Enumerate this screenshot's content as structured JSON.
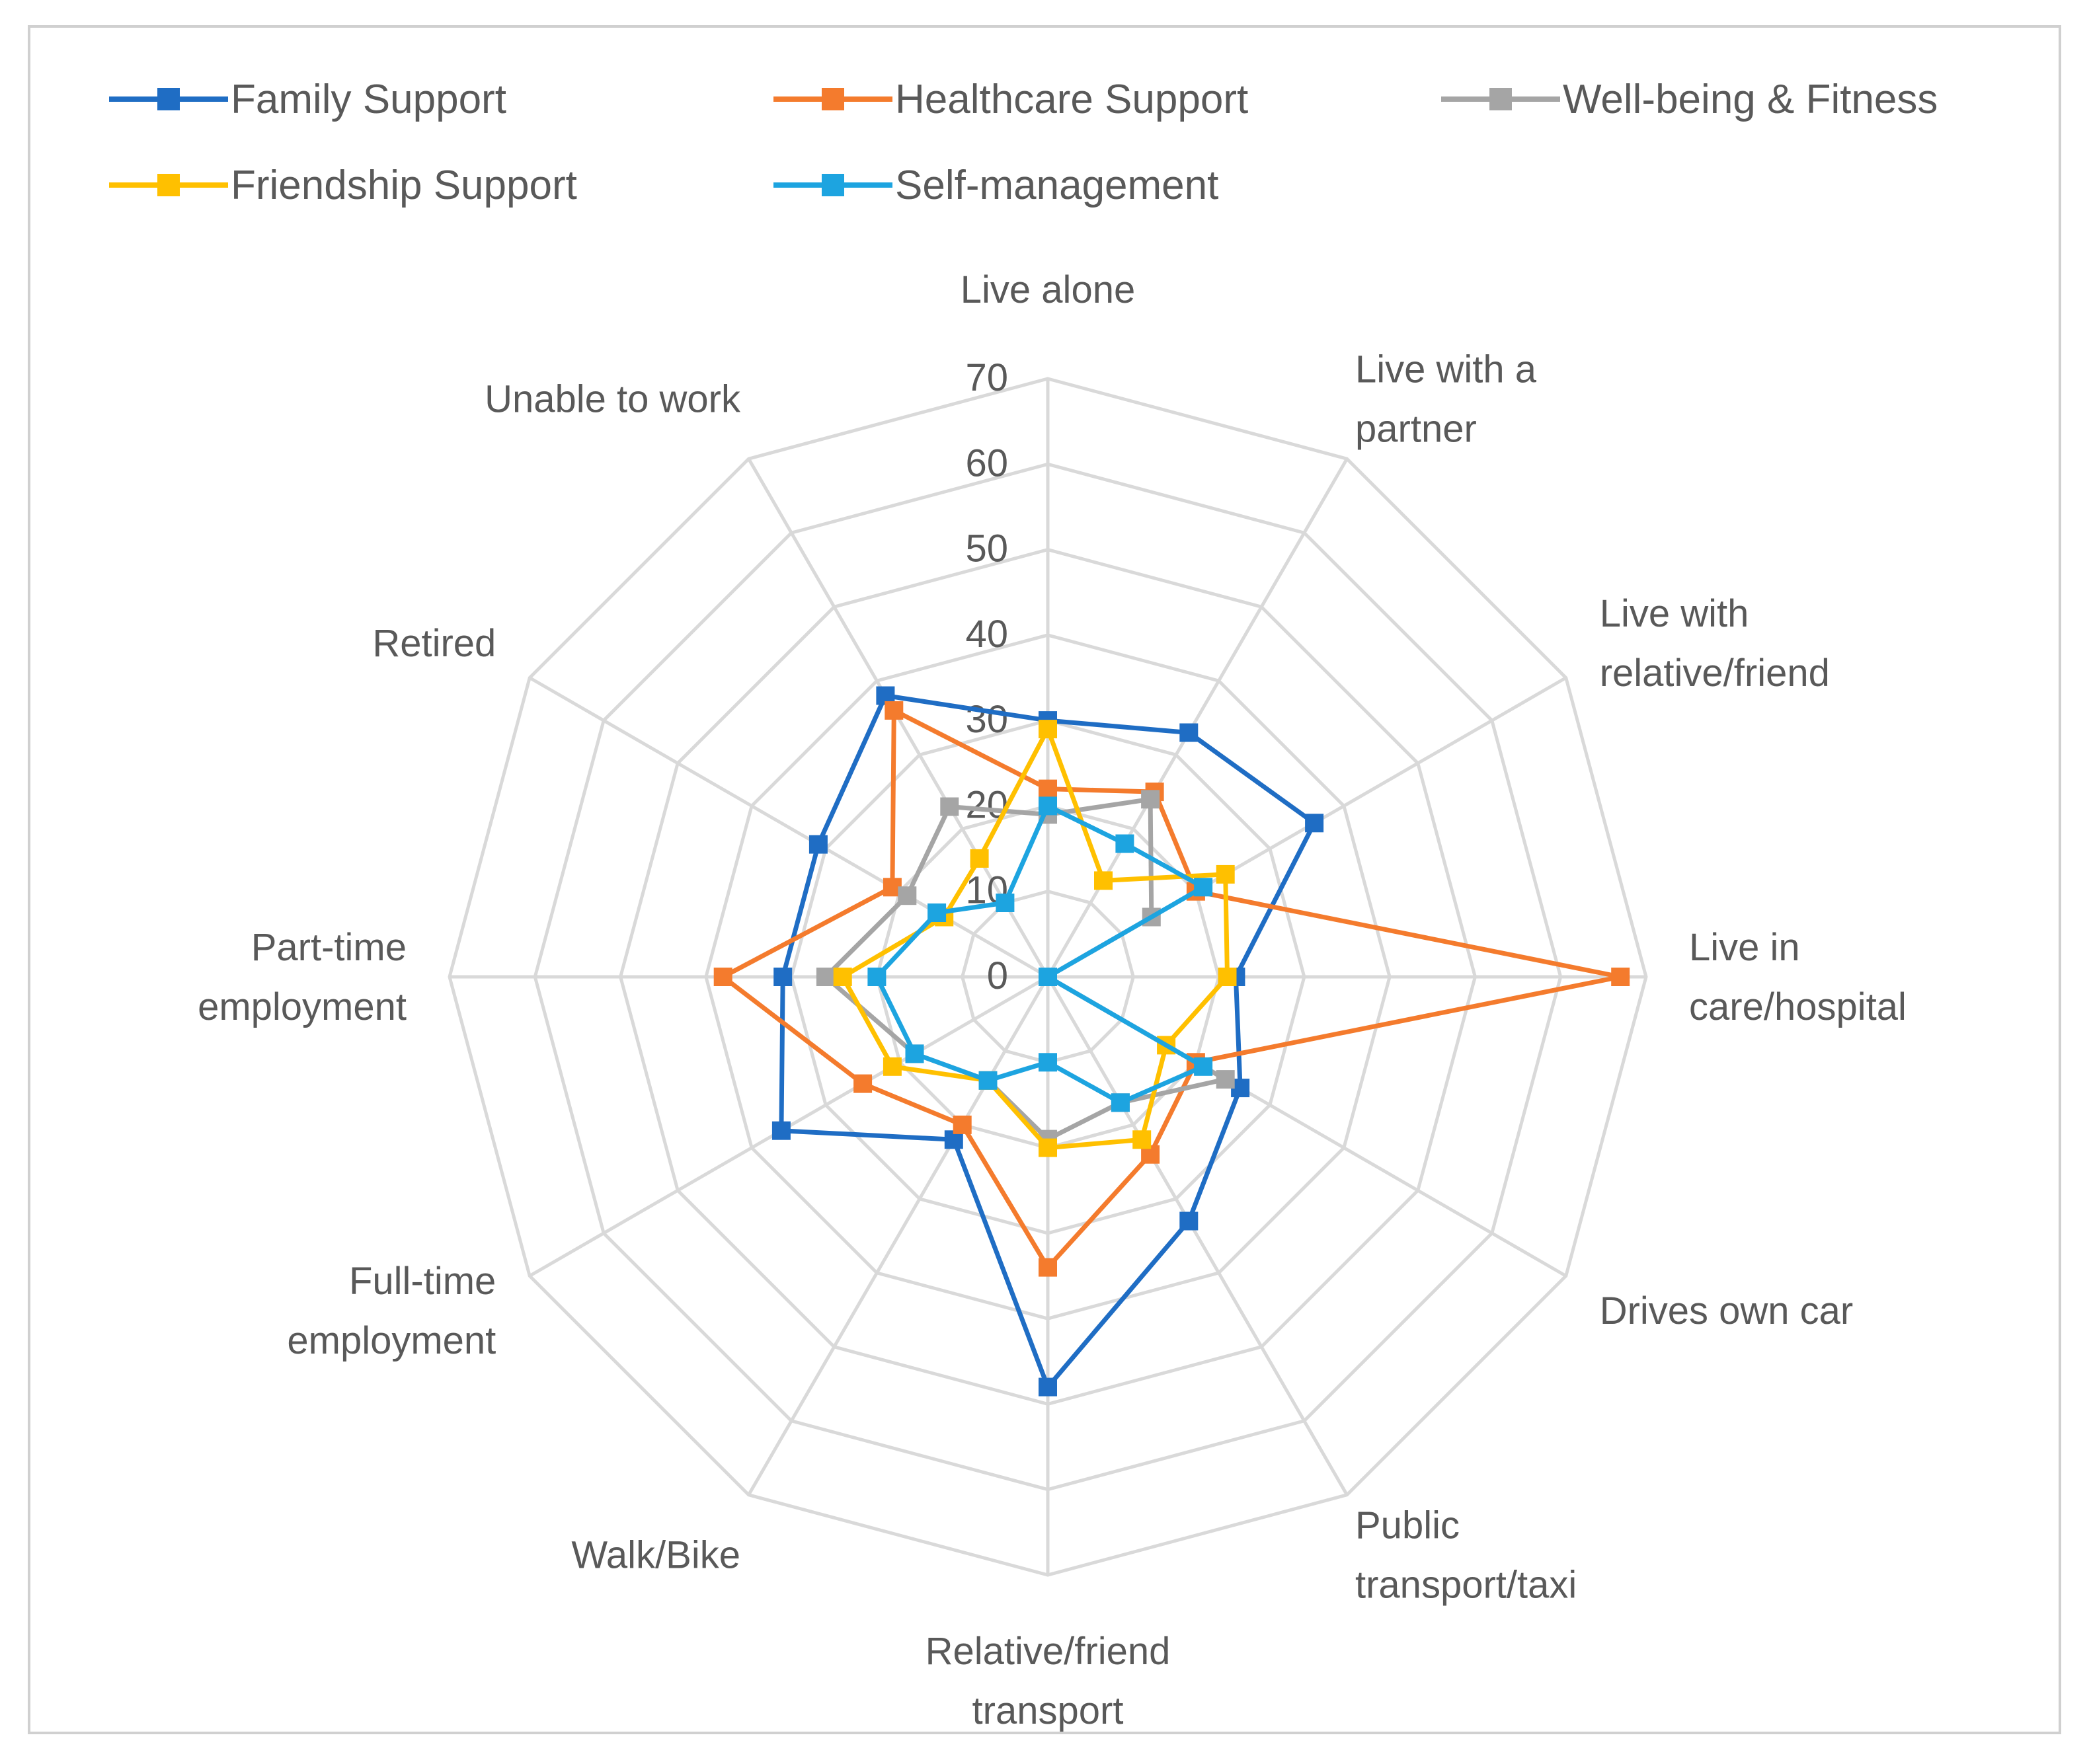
{
  "chart_data": {
    "type": "radar",
    "title": "",
    "categories": [
      [
        "Live alone"
      ],
      [
        "Live with a",
        "partner"
      ],
      [
        "Live with",
        "relative/friend"
      ],
      [
        "Live in",
        "care/hospital"
      ],
      [
        "Drives own car"
      ],
      [
        "Public",
        "transport/taxi"
      ],
      [
        "Relative/friend",
        "transport"
      ],
      [
        "Walk/Bike"
      ],
      [
        "Full-time",
        "employment"
      ],
      [
        "Part-time",
        "employment"
      ],
      [
        "Retired"
      ],
      [
        "Unable to work"
      ]
    ],
    "radial_axis": {
      "min": 0,
      "max": 70,
      "step": 10,
      "ticks": [
        "0",
        "10",
        "20",
        "30",
        "40",
        "50",
        "60",
        "70"
      ]
    },
    "legend_position": "top",
    "series": [
      {
        "name": "Family Support",
        "color": "#1F6DC4",
        "values": [
          30,
          33,
          36,
          22,
          26,
          33,
          48,
          22,
          36,
          31,
          31,
          38
        ]
      },
      {
        "name": "Healthcare Support",
        "color": "#F47B2D",
        "values": [
          22,
          25,
          20,
          67,
          20,
          24,
          34,
          20,
          25,
          38,
          21,
          36
        ]
      },
      {
        "name": "Well-being & Fitness",
        "color": "#A5A5A5",
        "values": [
          19,
          24,
          14,
          0,
          24,
          17,
          19,
          14,
          18,
          26,
          19,
          23
        ]
      },
      {
        "name": "Friendship Support",
        "color": "#FFC000",
        "values": [
          29,
          13,
          24,
          21,
          16,
          22,
          20,
          14,
          21,
          24,
          14,
          16
        ]
      },
      {
        "name": "Self-management",
        "color": "#1DA4E0",
        "values": [
          20,
          18,
          21,
          0,
          21,
          17,
          10,
          14,
          18,
          20,
          15,
          10
        ]
      }
    ]
  }
}
